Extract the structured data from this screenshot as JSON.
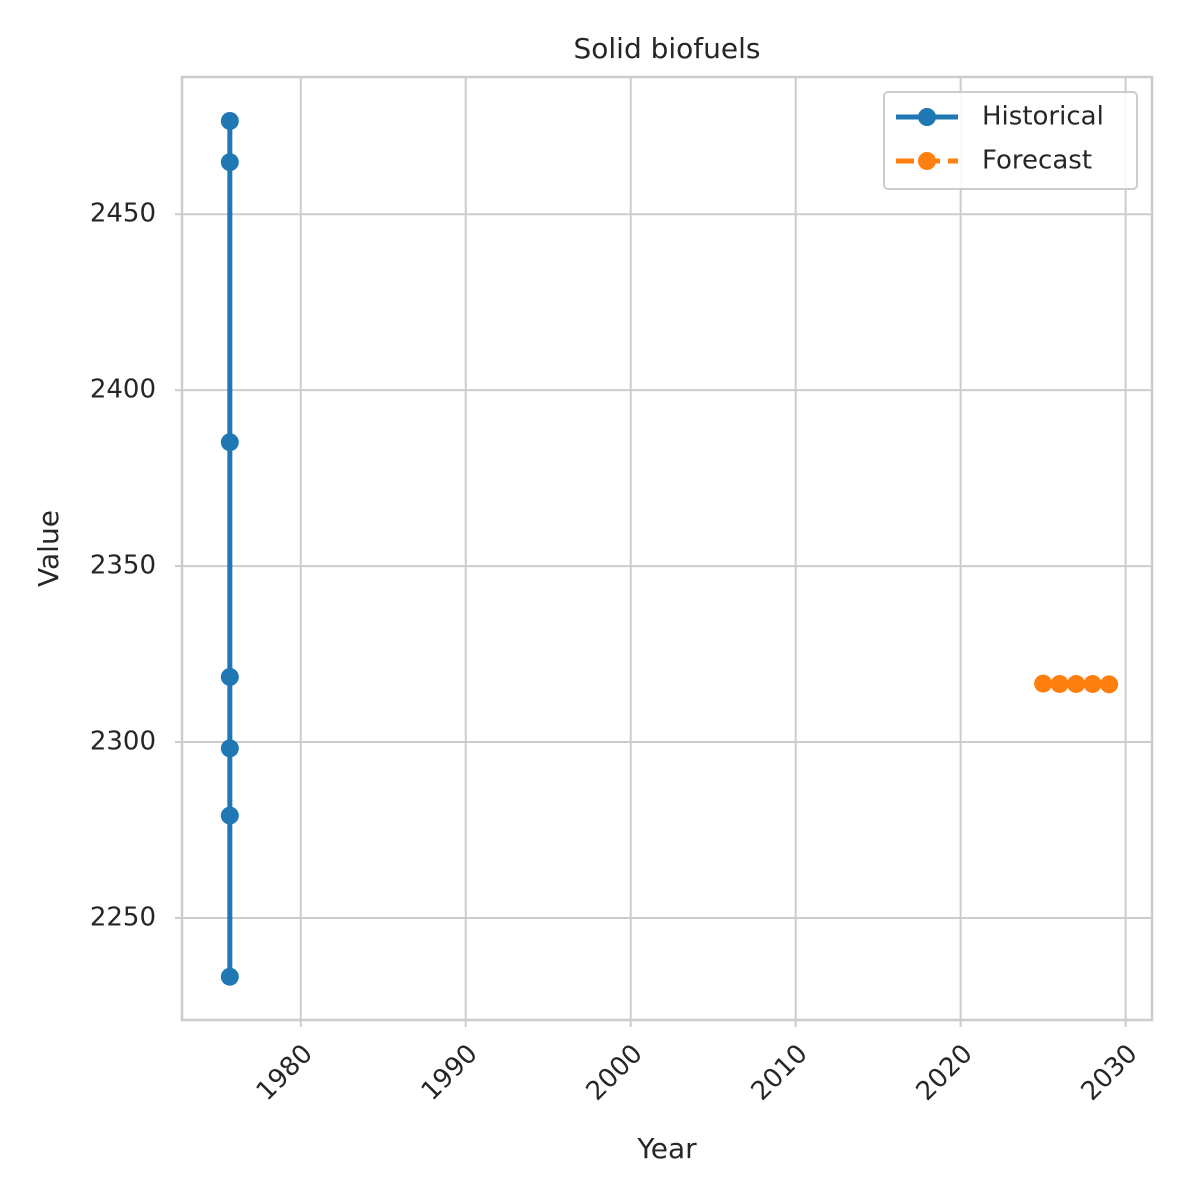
{
  "chart_data": {
    "type": "line",
    "title": "Solid biofuels",
    "xlabel": "Year",
    "ylabel": "Value",
    "xlim": [
      1972.8,
      2031.6
    ],
    "ylim": [
      2221,
      2489
    ],
    "x_ticks": [
      1980,
      1990,
      2000,
      2010,
      2020,
      2030
    ],
    "y_ticks": [
      2250,
      2300,
      2350,
      2400,
      2450
    ],
    "grid": true,
    "legend_position": "top-right",
    "series": [
      {
        "name": "Historical",
        "color": "#1f77b4",
        "line_style": "solid",
        "marker": "circle",
        "points": [
          {
            "x": 1975.7,
            "y": 2476.5
          },
          {
            "x": 1975.7,
            "y": 2464.8
          },
          {
            "x": 1975.7,
            "y": 2385.2
          },
          {
            "x": 1975.7,
            "y": 2318.5
          },
          {
            "x": 1975.7,
            "y": 2298.2
          },
          {
            "x": 1975.7,
            "y": 2279.1
          },
          {
            "x": 1975.7,
            "y": 2233.3
          }
        ]
      },
      {
        "name": "Forecast",
        "color": "#ff7f0e",
        "line_style": "dashed",
        "marker": "circle",
        "points": [
          {
            "x": 2025,
            "y": 2316.6
          },
          {
            "x": 2026,
            "y": 2316.5
          },
          {
            "x": 2027,
            "y": 2316.5
          },
          {
            "x": 2028,
            "y": 2316.5
          },
          {
            "x": 2029,
            "y": 2316.4
          }
        ]
      }
    ]
  }
}
